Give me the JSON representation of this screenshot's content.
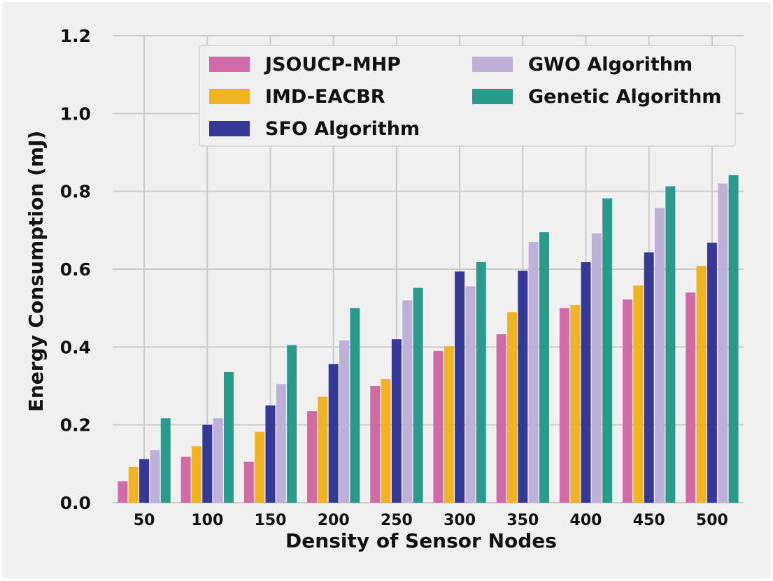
{
  "chart_data": {
    "type": "bar",
    "xlabel": "Density of Sensor Nodes",
    "ylabel": "Energy Consumption (mJ)",
    "categories": [
      "50",
      "100",
      "150",
      "200",
      "250",
      "300",
      "350",
      "400",
      "450",
      "500"
    ],
    "ylim": [
      0,
      1.2
    ],
    "yticks": [
      "0.0",
      "0.2",
      "0.4",
      "0.6",
      "0.8",
      "1.0",
      "1.2"
    ],
    "grid": true,
    "legend_position": "top-right",
    "series": [
      {
        "name": "JSOUCP-MHP",
        "color": "#d36aa8",
        "values": [
          0.055,
          0.118,
          0.105,
          0.235,
          0.3,
          0.39,
          0.433,
          0.5,
          0.522,
          0.54
        ]
      },
      {
        "name": "IMD-EACBR",
        "color": "#f0b324",
        "values": [
          0.092,
          0.145,
          0.182,
          0.272,
          0.318,
          0.402,
          0.49,
          0.508,
          0.558,
          0.608
        ]
      },
      {
        "name": "SFO Algorithm",
        "color": "#363895",
        "values": [
          0.112,
          0.2,
          0.25,
          0.356,
          0.42,
          0.594,
          0.596,
          0.618,
          0.643,
          0.668
        ]
      },
      {
        "name": "GWO Algorithm",
        "color": "#bfb0d9",
        "values": [
          0.135,
          0.217,
          0.305,
          0.417,
          0.52,
          0.556,
          0.67,
          0.692,
          0.757,
          0.82
        ]
      },
      {
        "name": "Genetic Algorithm",
        "color": "#2a9a8a",
        "values": [
          0.217,
          0.336,
          0.405,
          0.5,
          0.552,
          0.618,
          0.695,
          0.782,
          0.813,
          0.842
        ]
      }
    ]
  }
}
